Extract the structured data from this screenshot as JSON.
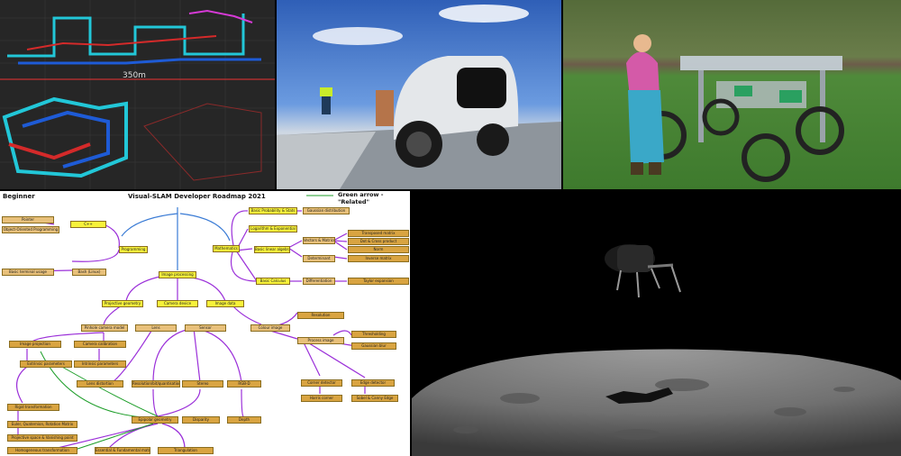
{
  "panels": {
    "slam": {
      "scale_label": "350m"
    },
    "roadmap": {
      "level": "Beginner",
      "title": "Visual-SLAM Developer Roadmap 2021",
      "legend": "Green arrow - \"Related\"",
      "boxes": {
        "pointer": "Pointer",
        "oop": "Object-Oriented Programming",
        "cpp": "C++",
        "programming": "Programming",
        "bash": "Bash (Linux)",
        "terminal": "Basic terminal usage",
        "image_processing": "Image processing",
        "mathematics": "Mathematics",
        "prob": "Basic Probability & Stats",
        "gaussian": "Gaussian distribution",
        "log": "Logarithm & Exponential",
        "lin_alg": "Basic linear algebra",
        "vectors": "Vectors & Matrices",
        "transpose": "Transposed matrix",
        "dot_cross": "Dot & Cross product",
        "norm": "Norm",
        "determinant": "Determinant",
        "inverse": "Inverse matrix",
        "calculus": "Basic Calculus",
        "diff": "Differentiation",
        "taylor": "Taylor expansion",
        "projective": "Projective geometry",
        "camera_device": "Camera device",
        "image_data": "Image data",
        "pinhole": "Pinhole camera model",
        "lens": "Lens",
        "sensor": "Sensor",
        "colour": "Colour image",
        "resolution": "Resolution",
        "thresholding": "Thresholding",
        "gaussian_blur": "Gaussian blur",
        "process_image": "Process image",
        "image_projection": "Image projection",
        "camera_calib": "Camera calibration",
        "extrinsic": "Extrinsic parameters",
        "intrinsic": "Intrinsic parameters",
        "lens_distortion": "Lens distortion",
        "res_bit": "Resolution/bit/quantisation",
        "stereo": "Stereo",
        "depth": "Depth",
        "rgbd": "RGB-D",
        "corner": "Corner detector",
        "edge": "Edge detector",
        "harris": "Harris corner",
        "sobel": "Sobel & Canny Edge",
        "rigid": "Rigid transformation",
        "euler": "Euler, Quaternion, Rotation Matrix",
        "proj_space": "Projective space & Vanishing point",
        "homogeneous": "Homogeneous transformation",
        "epipolar": "Epipolar geometry",
        "disparity": "Disparity",
        "essential": "Essential & Fundamental matrix",
        "triangulation": "Triangulation"
      }
    }
  },
  "colors": {
    "box_yellow": "#f7f23a",
    "box_orange": "#d9a441",
    "arrow_purple": "#9b30d9",
    "arrow_blue": "#3a7bd5",
    "arrow_green": "#1e9e2a"
  }
}
